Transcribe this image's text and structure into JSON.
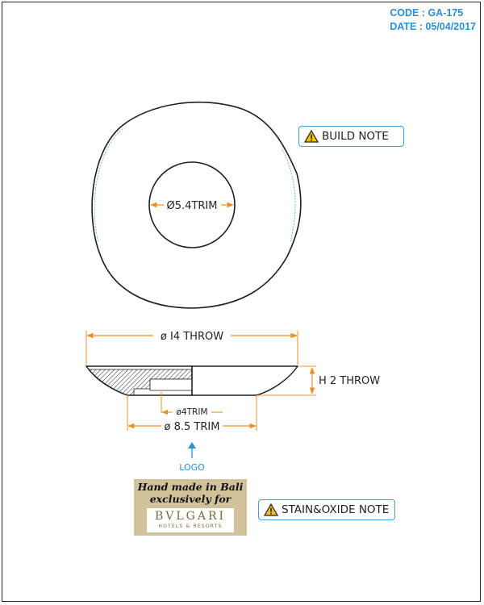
{
  "header": {
    "code": "CODE : GA-175",
    "date": "DATE : 05/04/2017"
  },
  "notes": {
    "build": "BUILD NOTE",
    "stain": "STAIN&OXIDE NOTE"
  },
  "dimensions": {
    "top_trim": "Ø5.4TRIM",
    "throw_diameter": "ø I4 THROW",
    "height": "H 2 THROW",
    "inner_trim": "ø4TRIM",
    "base_trim": "ø 8.5 TRIM"
  },
  "logo_label": "LOGO",
  "stamp": {
    "line1": "Hand made in Bali",
    "line2": "exclusively for",
    "brand": "BVLGARI",
    "sub": "HOTELS & RESORTS"
  },
  "colors": {
    "dimension": "#e8902c",
    "accent": "#2a8fd6",
    "line": "#1e1e1e"
  },
  "icons": [
    "warning-icon",
    "arrow-up-icon"
  ]
}
